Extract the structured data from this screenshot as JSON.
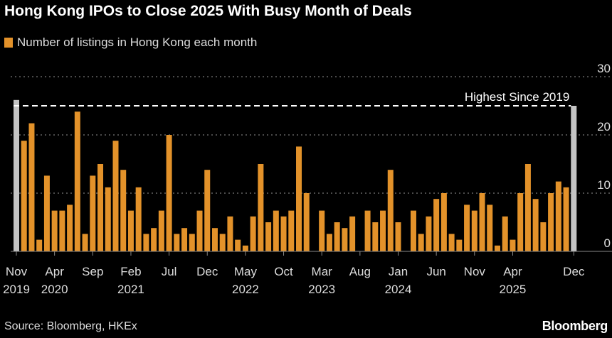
{
  "title": "Hong Kong IPOs to Close 2025 With Busy Month of Deals",
  "source": "Source: Bloomberg, HKEx",
  "logo": "Bloomberg",
  "colors": {
    "bar": "#e3922a",
    "highlight": "#c4c4c4",
    "background": "#000000",
    "grid": "#777777"
  },
  "chart_data": {
    "type": "bar",
    "title": "Hong Kong IPOs to Close 2025 With Busy Month of Deals",
    "legend": "Number of listings in Hong Kong each month",
    "annotation": "Highest Since 2019",
    "annotation_value": 25,
    "ylim": [
      0,
      30
    ],
    "yticks": [
      0,
      10,
      20,
      30
    ],
    "grid": true,
    "start_month": "2019-11",
    "highlighted": [
      "Nov 2019",
      "Dec 2025"
    ],
    "values": [
      26,
      19,
      22,
      2,
      13,
      7,
      7,
      8,
      24,
      3,
      13,
      15,
      11,
      19,
      14,
      7,
      11,
      3,
      4,
      7,
      20,
      3,
      4,
      3,
      7,
      14,
      4,
      3,
      6,
      2,
      1,
      6,
      15,
      5,
      7,
      6,
      7,
      18,
      10,
      0,
      7,
      3,
      5,
      4,
      6,
      0,
      7,
      5,
      7,
      14,
      5,
      0,
      7,
      3,
      6,
      9,
      10,
      3,
      2,
      8,
      7,
      10,
      8,
      1,
      6,
      2,
      10,
      15,
      9,
      5,
      10,
      12,
      11,
      25
    ],
    "xticks": [
      {
        "index": 0,
        "month": "Nov",
        "year": "2019"
      },
      {
        "index": 5,
        "month": "Apr",
        "year": "2020"
      },
      {
        "index": 10,
        "month": "Sep",
        "year": ""
      },
      {
        "index": 15,
        "month": "Feb",
        "year": "2021"
      },
      {
        "index": 20,
        "month": "Jul",
        "year": ""
      },
      {
        "index": 25,
        "month": "Dec",
        "year": ""
      },
      {
        "index": 30,
        "month": "May",
        "year": "2022"
      },
      {
        "index": 35,
        "month": "Oct",
        "year": ""
      },
      {
        "index": 40,
        "month": "Mar",
        "year": "2023"
      },
      {
        "index": 45,
        "month": "Aug",
        "year": ""
      },
      {
        "index": 50,
        "month": "Jan",
        "year": "2024"
      },
      {
        "index": 55,
        "month": "Jun",
        "year": ""
      },
      {
        "index": 60,
        "month": "Nov",
        "year": ""
      },
      {
        "index": 65,
        "month": "Apr",
        "year": "2025"
      },
      {
        "index": 73,
        "month": "Dec",
        "year": ""
      }
    ]
  }
}
